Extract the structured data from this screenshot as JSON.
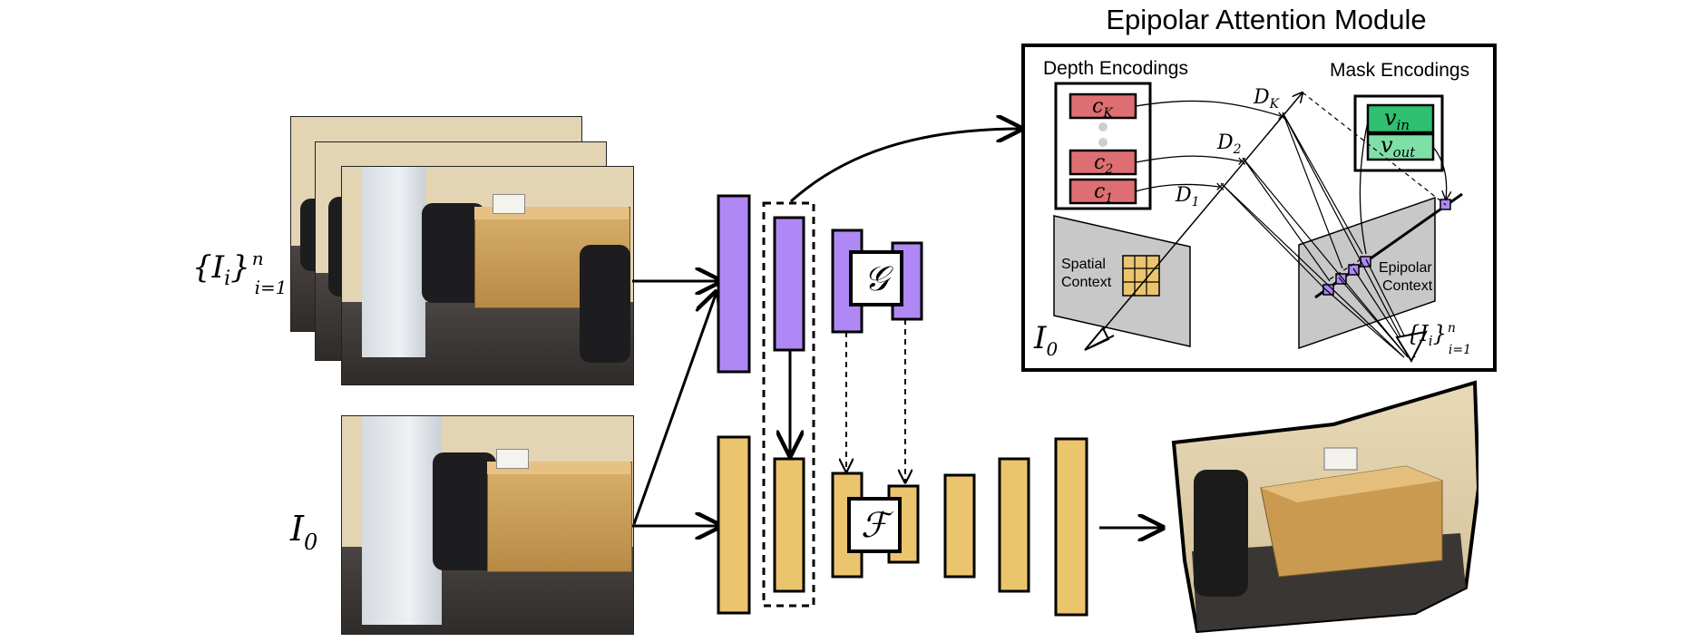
{
  "title": "Epipolar Attention Module",
  "labels": {
    "input_set_main": "{I",
    "input_set_sub": "i",
    "input_set_close": "}",
    "input_set_n": "n",
    "input_set_range": "i=1",
    "ref_main": "I",
    "ref_sub": "0",
    "G_symbol": "𝒢",
    "F_symbol": "ℱ"
  },
  "module": {
    "depth_encodings": "Depth Encodings",
    "mask_encodings": "Mask Encodings",
    "c_K": "c",
    "c_K_sub": "K",
    "c_2": "c",
    "c_2_sub": "2",
    "c_1": "c",
    "c_1_sub": "1",
    "v_in": "v",
    "v_in_sub": "in",
    "v_out": "v",
    "v_out_sub": "out",
    "D_K": "D",
    "D_K_sub": "K",
    "D_2": "D",
    "D_2_sub": "2",
    "D_1": "D",
    "D_1_sub": "1",
    "spatial_1": "Spatial",
    "spatial_2": "Context",
    "epipolar_1": "Epipolar",
    "epipolar_2": "Context",
    "I0_main": "I",
    "I0_sub": "0",
    "Ii_main": "{I",
    "Ii_sub": "i",
    "Ii_close": "}",
    "Ii_n": "n",
    "Ii_range": "i=1"
  },
  "colors": {
    "purple": "#b088f5",
    "gold": "#ebc46e",
    "red": "#dd6f73",
    "green_dark": "#2fbf71",
    "green_light": "#7fe0a7",
    "gray_plane": "#c8c8c8",
    "stroke": "#000000"
  }
}
